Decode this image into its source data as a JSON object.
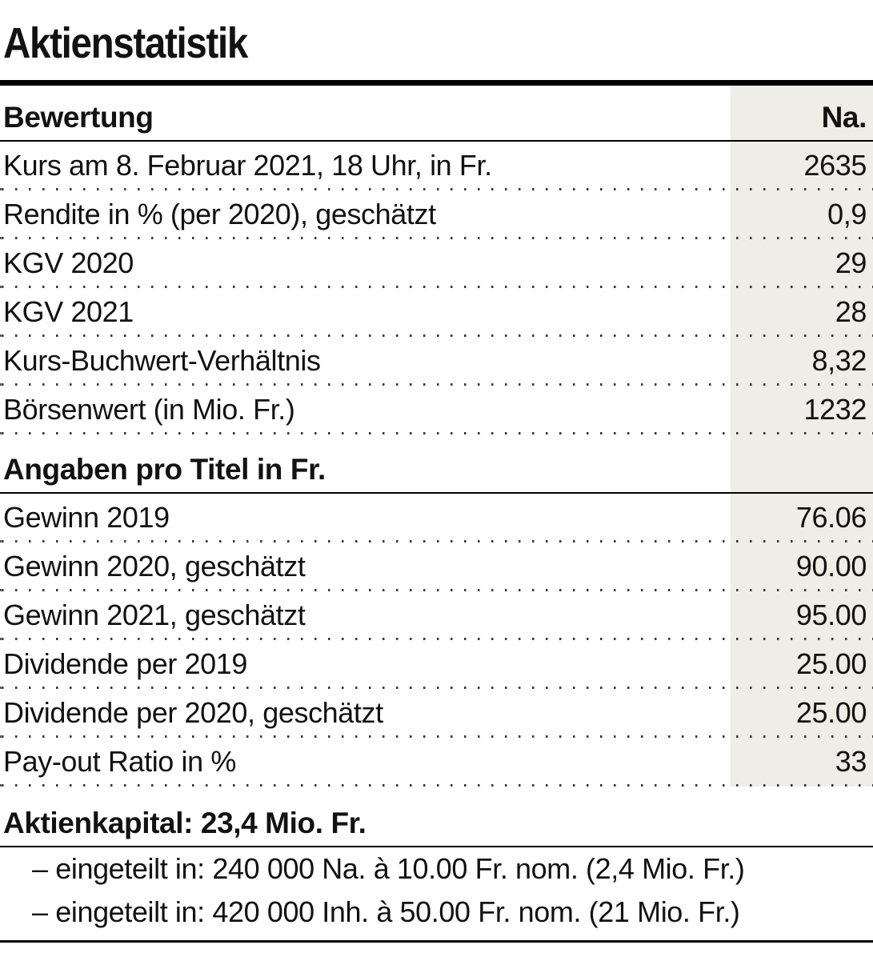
{
  "chart_data": {
    "type": "table",
    "title": "Aktienstatistik",
    "value_column_header": "Na.",
    "sections": [
      {
        "header": "Bewertung",
        "rows": [
          [
            "Kurs am 8. Februar 2021, 18 Uhr, in Fr.",
            "2635"
          ],
          [
            "Rendite in % (per 2020), geschätzt",
            "0,9"
          ],
          [
            "KGV 2020",
            "29"
          ],
          [
            "KGV 2021",
            "28"
          ],
          [
            "Kurs-Buchwert-Verhältnis",
            "8,32"
          ],
          [
            "Börsenwert (in Mio. Fr.)",
            "1232"
          ]
        ]
      },
      {
        "header": "Angaben pro Titel in Fr.",
        "rows": [
          [
            "Gewinn 2019",
            "76.06"
          ],
          [
            "Gewinn 2020, geschätzt",
            "90.00"
          ],
          [
            "Gewinn 2021, geschätzt",
            "95.00"
          ],
          [
            "Dividende per 2019",
            "25.00"
          ],
          [
            "Dividende per 2020, geschätzt",
            "25.00"
          ],
          [
            "Pay-out Ratio in %",
            "33"
          ]
        ]
      }
    ],
    "footer_header": "Aktienkapital: 23,4 Mio. Fr.",
    "footer_notes": [
      "– eingeteilt in: 240 000 Na. à 10.00 Fr. nom. (2,4 Mio. Fr.)",
      "– eingeteilt in: 420 000 Inh. à 50.00 Fr. nom. (21 Mio. Fr.)"
    ],
    "layout_hints": {
      "value_column_shaded": true,
      "row_separator": "dotted",
      "section_separator": "solid"
    }
  },
  "colors": {
    "shade": "#EEEDE6",
    "text": "#121212",
    "rule": "#000000",
    "dots": "#3b3b3b"
  }
}
